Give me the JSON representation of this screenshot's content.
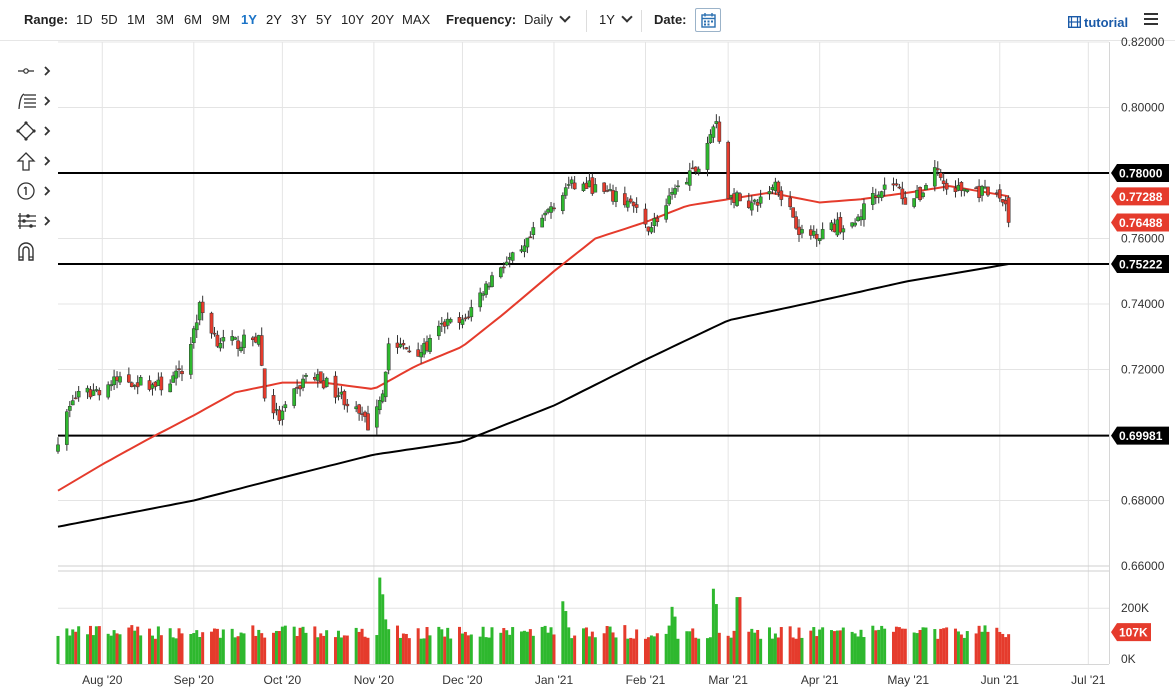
{
  "toolbar": {
    "range_label": "Range:",
    "ranges": [
      "1D",
      "5D",
      "1M",
      "3M",
      "6M",
      "9M",
      "1Y",
      "2Y",
      "3Y",
      "5Y",
      "10Y",
      "20Y",
      "MAX"
    ],
    "active_range": "1Y",
    "frequency_label": "Frequency:",
    "frequency_value": "Daily",
    "period_value": "1Y",
    "date_label": "Date:",
    "tutorial_label": "tutorial"
  },
  "sidebar_tools": [
    "crosshair-tool",
    "fibonacci-tool",
    "shapes-tool",
    "arrow-tool",
    "annotation-tool",
    "indicator-tool",
    "magnet-tool"
  ],
  "colors": {
    "up": "#2eb82e",
    "down": "#e53b2c",
    "ma_short": "#e53b2c",
    "ma_long": "#000000",
    "accent": "#1a73c7"
  },
  "chart_data": {
    "type": "candlestick",
    "price_axis_labels": [
      "0.82000",
      "0.80000",
      "0.78000",
      "0.76000",
      "0.74000",
      "0.72000",
      "0.70000",
      "0.68000",
      "0.66000"
    ],
    "ylim": [
      0.66,
      0.82
    ],
    "x_tick_labels": [
      "Aug '20",
      "Sep '20",
      "Oct '20",
      "Nov '20",
      "Dec '20",
      "Jan '21",
      "Feb '21",
      "Mar '21",
      "Apr '21",
      "May '21",
      "Jun '21",
      "Jul '21"
    ],
    "x_ticks": [
      "2020-08-01",
      "2020-09-01",
      "2020-10-01",
      "2020-11-01",
      "2020-12-01",
      "2021-01-01",
      "2021-02-01",
      "2021-03-01",
      "2021-04-01",
      "2021-05-01",
      "2021-06-01",
      "2021-07-01"
    ],
    "x_range": [
      "2020-07-17",
      "2021-07-08"
    ],
    "close_anchors": [
      [
        "2020-07-17",
        0.699
      ],
      [
        "2020-07-22",
        0.711
      ],
      [
        "2020-07-31",
        0.714
      ],
      [
        "2020-08-07",
        0.717
      ],
      [
        "2020-08-14",
        0.716
      ],
      [
        "2020-08-21",
        0.715
      ],
      [
        "2020-08-28",
        0.719
      ],
      [
        "2020-09-01",
        0.732
      ],
      [
        "2020-09-03",
        0.739
      ],
      [
        "2020-09-09",
        0.729
      ],
      [
        "2020-09-16",
        0.728
      ],
      [
        "2020-09-23",
        0.73
      ],
      [
        "2020-09-25",
        0.712
      ],
      [
        "2020-09-30",
        0.705
      ],
      [
        "2020-10-09",
        0.718
      ],
      [
        "2020-10-14",
        0.717
      ],
      [
        "2020-10-21",
        0.712
      ],
      [
        "2020-10-26",
        0.707
      ],
      [
        "2020-10-30",
        0.703
      ],
      [
        "2020-11-04",
        0.714
      ],
      [
        "2020-11-06",
        0.728
      ],
      [
        "2020-11-13",
        0.726
      ],
      [
        "2020-11-18",
        0.726
      ],
      [
        "2020-11-25",
        0.734
      ],
      [
        "2020-12-01",
        0.734
      ],
      [
        "2020-12-07",
        0.743
      ],
      [
        "2020-12-14",
        0.752
      ],
      [
        "2020-12-21",
        0.755
      ],
      [
        "2020-12-24",
        0.76
      ],
      [
        "2020-12-31",
        0.77
      ],
      [
        "2021-01-06",
        0.776
      ],
      [
        "2021-01-13",
        0.776
      ],
      [
        "2021-01-20",
        0.773
      ],
      [
        "2021-01-27",
        0.771
      ],
      [
        "2021-02-01",
        0.763
      ],
      [
        "2021-02-05",
        0.766
      ],
      [
        "2021-02-12",
        0.775
      ],
      [
        "2021-02-19",
        0.782
      ],
      [
        "2021-02-25",
        0.797
      ],
      [
        "2021-03-01",
        0.773
      ],
      [
        "2021-03-05",
        0.772
      ],
      [
        "2021-03-10",
        0.77
      ],
      [
        "2021-03-17",
        0.777
      ],
      [
        "2021-03-22",
        0.769
      ],
      [
        "2021-03-26",
        0.761
      ],
      [
        "2021-04-01",
        0.762
      ],
      [
        "2021-04-07",
        0.764
      ],
      [
        "2021-04-12",
        0.763
      ],
      [
        "2021-04-19",
        0.774
      ],
      [
        "2021-04-26",
        0.777
      ],
      [
        "2021-04-30",
        0.772
      ],
      [
        "2021-05-05",
        0.773
      ],
      [
        "2021-05-10",
        0.782
      ],
      [
        "2021-05-14",
        0.775
      ],
      [
        "2021-05-21",
        0.775
      ],
      [
        "2021-05-26",
        0.774
      ],
      [
        "2021-05-31",
        0.773
      ],
      [
        "2021-06-03",
        0.771
      ],
      [
        "2021-06-04",
        0.7649
      ]
    ],
    "ma_short_anchors": [
      [
        "2020-07-17",
        0.683
      ],
      [
        "2020-08-01",
        0.691
      ],
      [
        "2020-08-15",
        0.698
      ],
      [
        "2020-09-01",
        0.706
      ],
      [
        "2020-09-15",
        0.713
      ],
      [
        "2020-10-01",
        0.716
      ],
      [
        "2020-10-15",
        0.716
      ],
      [
        "2020-11-01",
        0.714
      ],
      [
        "2020-11-15",
        0.721
      ],
      [
        "2020-12-01",
        0.727
      ],
      [
        "2020-12-15",
        0.737
      ],
      [
        "2021-01-01",
        0.75
      ],
      [
        "2021-01-15",
        0.76
      ],
      [
        "2021-02-01",
        0.765
      ],
      [
        "2021-02-15",
        0.77
      ],
      [
        "2021-03-01",
        0.772
      ],
      [
        "2021-03-15",
        0.774
      ],
      [
        "2021-04-01",
        0.771
      ],
      [
        "2021-04-15",
        0.772
      ],
      [
        "2021-05-01",
        0.774
      ],
      [
        "2021-05-15",
        0.776
      ],
      [
        "2021-06-04",
        0.7729
      ]
    ],
    "ma_long_anchors": [
      [
        "2020-07-17",
        0.672
      ],
      [
        "2020-09-01",
        0.68
      ],
      [
        "2020-10-01",
        0.687
      ],
      [
        "2020-11-01",
        0.694
      ],
      [
        "2020-12-01",
        0.698
      ],
      [
        "2021-01-01",
        0.709
      ],
      [
        "2021-02-01",
        0.723
      ],
      [
        "2021-03-01",
        0.735
      ],
      [
        "2021-04-01",
        0.741
      ],
      [
        "2021-05-01",
        0.747
      ],
      [
        "2021-06-04",
        0.7522
      ]
    ],
    "horizontal_lines": [
      0.78,
      0.75222,
      0.69981
    ],
    "price_tags": [
      {
        "label": "0.78000",
        "value": 0.78,
        "color": "#000000"
      },
      {
        "label": "0.77288",
        "value": 0.77288,
        "color": "#e53b2c"
      },
      {
        "label": "0.76488",
        "value": 0.76488,
        "color": "#e53b2c"
      },
      {
        "label": "0.75222",
        "value": 0.75222,
        "color": "#000000"
      },
      {
        "label": "0.69981",
        "value": 0.69981,
        "color": "#000000"
      }
    ],
    "volume": {
      "axis_labels": [
        "200K",
        "0K"
      ],
      "ylim": [
        0,
        330000
      ],
      "last_label": "107K",
      "typical": 110000,
      "spikes": [
        [
          "2020-11-03",
          310000
        ],
        [
          "2020-11-04",
          250000
        ],
        [
          "2020-11-05",
          160000
        ],
        [
          "2021-01-04",
          225000
        ],
        [
          "2021-01-05",
          190000
        ],
        [
          "2021-02-10",
          205000
        ],
        [
          "2021-02-11",
          170000
        ],
        [
          "2021-02-24",
          270000
        ],
        [
          "2021-02-25",
          215000
        ],
        [
          "2021-03-04",
          240000
        ],
        [
          "2021-03-05",
          240000
        ]
      ]
    }
  }
}
